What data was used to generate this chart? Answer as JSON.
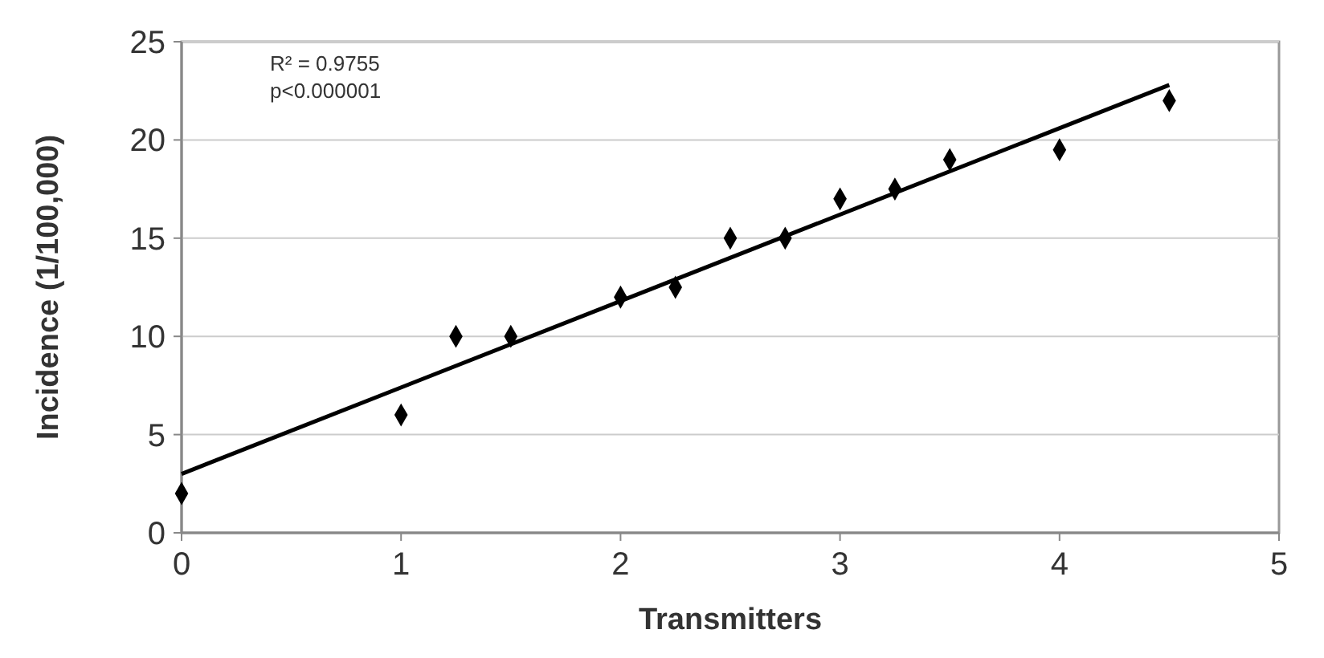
{
  "chart_data": {
    "type": "scatter",
    "xlabel": "Transmitters",
    "ylabel": "Incidence (1/100,000)",
    "x": [
      0,
      1,
      1.25,
      1.5,
      2,
      2.25,
      2.5,
      2.75,
      3,
      3.25,
      3.5,
      4,
      4.5
    ],
    "series": [
      {
        "type": "scatter",
        "color": "#000000",
        "marker": "diamond",
        "values": [
          2,
          6,
          10,
          10,
          12,
          12.5,
          15,
          15,
          17,
          17.5,
          19,
          19.5,
          22
        ]
      },
      {
        "type": "line",
        "color": "#000000",
        "marker": "none",
        "line_style": "solid",
        "x": [
          0,
          4.5
        ],
        "values": [
          3,
          22.8
        ]
      }
    ],
    "xlim": [
      0,
      5
    ],
    "xticks": [
      0,
      1,
      2,
      3,
      4,
      5
    ],
    "ylim": [
      0,
      25
    ],
    "yticks": [
      0,
      5,
      10,
      15,
      20,
      25
    ],
    "grid": "y",
    "annotations": [
      "R² = 0.9755",
      "p<0.000001"
    ]
  }
}
